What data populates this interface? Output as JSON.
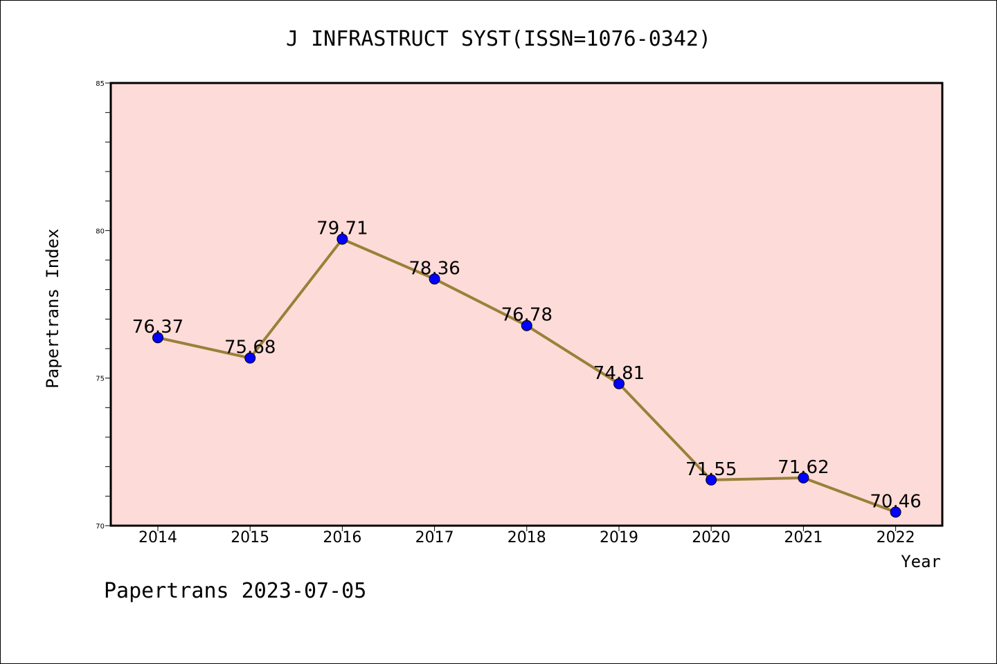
{
  "chart_data": {
    "type": "line",
    "title": "J INFRASTRUCT SYST(ISSN=1076-0342)",
    "xlabel": "Year",
    "ylabel": "Papertrans Index",
    "x": [
      "2014",
      "2015",
      "2016",
      "2017",
      "2018",
      "2019",
      "2020",
      "2021",
      "2022"
    ],
    "values": [
      76.37,
      75.68,
      79.71,
      78.36,
      76.78,
      74.81,
      71.55,
      71.62,
      70.46
    ],
    "data_labels": [
      "76.37",
      "75.68",
      "79.71",
      "78.36",
      "76.78",
      "74.81",
      "71.55",
      "71.62",
      "70.46"
    ],
    "ylim": [
      70,
      85
    ],
    "y_major_ticks": [
      70,
      75,
      80,
      85
    ],
    "y_tick_labels": [
      "70",
      "75",
      "80",
      "85"
    ],
    "y_minor_step": 1,
    "grid": false,
    "colors": {
      "plot_background": "#fddbd8",
      "line": "#9a8039",
      "marker": "#0000ff"
    }
  },
  "footer": "Papertrans 2023-07-05"
}
